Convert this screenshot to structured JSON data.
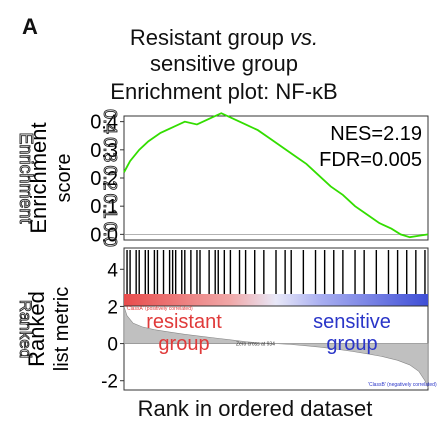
{
  "panel_label": "A",
  "titles": {
    "line1_main": "Resistant group ",
    "line1_italic": "vs.",
    "line2": "sensitive group",
    "line3": "Enrichment plot: NF-κB"
  },
  "xlabel": "Rank in ordered dataset",
  "colors": {
    "running_score": "#33dd00",
    "hits": "#000000",
    "positive_band": "#e84c4c",
    "negative_band": "#3f4fd6",
    "resistant_text": "#e03a3a",
    "sensitive_text": "#2a35c8",
    "metric_fill": "#c0c0c0"
  },
  "chart_data": [
    {
      "type": "line",
      "panel": "enrichment",
      "ylabel": "Enrichment score",
      "yticks": [
        "0.4",
        "0.3",
        "0.2",
        "0.1",
        "0.0"
      ],
      "ylim": [
        -0.02,
        0.42
      ],
      "xlim": [
        0,
        1
      ],
      "annotations": [
        "NES=2.19",
        "FDR=0.005"
      ],
      "x": [
        0.0,
        0.02,
        0.05,
        0.08,
        0.12,
        0.16,
        0.2,
        0.24,
        0.28,
        0.32,
        0.36,
        0.4,
        0.44,
        0.48,
        0.52,
        0.56,
        0.6,
        0.64,
        0.68,
        0.72,
        0.76,
        0.8,
        0.84,
        0.88,
        0.91,
        0.94,
        0.97,
        1.0
      ],
      "y": [
        0.22,
        0.26,
        0.3,
        0.33,
        0.36,
        0.38,
        0.4,
        0.39,
        0.41,
        0.43,
        0.41,
        0.39,
        0.37,
        0.34,
        0.31,
        0.28,
        0.25,
        0.21,
        0.17,
        0.14,
        0.1,
        0.07,
        0.04,
        0.02,
        0.0,
        -0.01,
        -0.005,
        0.0
      ]
    },
    {
      "type": "table",
      "panel": "hits",
      "hit_positions": [
        0.01,
        0.02,
        0.04,
        0.05,
        0.07,
        0.08,
        0.1,
        0.11,
        0.13,
        0.15,
        0.16,
        0.17,
        0.19,
        0.2,
        0.22,
        0.24,
        0.25,
        0.28,
        0.3,
        0.31,
        0.33,
        0.35,
        0.38,
        0.4,
        0.43,
        0.46,
        0.5,
        0.53,
        0.55,
        0.59,
        0.63,
        0.66,
        0.69,
        0.72,
        0.76,
        0.79,
        0.83,
        0.87,
        0.9,
        0.93,
        0.96,
        0.99
      ]
    },
    {
      "type": "area",
      "panel": "ranked_metric",
      "ylabel": "Ranked list metric",
      "yticks": [
        "4",
        "2",
        "0",
        "-2"
      ],
      "ylim": [
        -2.5,
        4.5
      ],
      "x": [
        0.0,
        0.01,
        0.03,
        0.06,
        0.1,
        0.15,
        0.2,
        0.25,
        0.3,
        0.35,
        0.4,
        0.45,
        0.5,
        0.55,
        0.6,
        0.65,
        0.7,
        0.75,
        0.8,
        0.85,
        0.9,
        0.94,
        0.97,
        0.99,
        1.0
      ],
      "y": [
        2.0,
        1.5,
        1.1,
        0.9,
        0.75,
        0.62,
        0.5,
        0.4,
        0.3,
        0.2,
        0.1,
        0.03,
        0.0,
        -0.05,
        -0.12,
        -0.2,
        -0.3,
        -0.42,
        -0.55,
        -0.7,
        -0.9,
        -1.15,
        -1.5,
        -2.0,
        -2.4
      ],
      "zero_cross_label": "Zero cross at 934",
      "labels": {
        "resistant": [
          "resistant",
          "group"
        ],
        "sensitive": [
          "sensitive",
          "group"
        ],
        "pos_corr": "'ClassA' (positively correlated)",
        "neg_corr": "'ClassB' (negatively correlated)"
      }
    }
  ]
}
